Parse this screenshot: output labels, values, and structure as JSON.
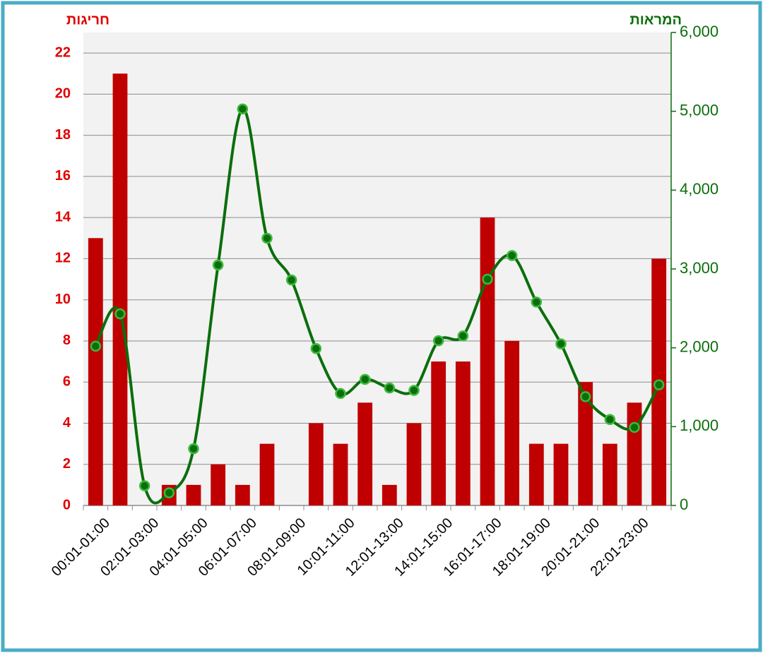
{
  "chart_data": {
    "type": "bar-line",
    "y_label": "חריגות",
    "y2_label": "המראות",
    "categories": [
      "00:01-01:00",
      null,
      "02:01-03:00",
      null,
      "04:01-05:00",
      null,
      "06:01-07:00",
      null,
      "08:01-09:00",
      null,
      "10:01-11:00",
      null,
      "12:01-13:00",
      null,
      "14:01-15:00",
      null,
      "16:01-17:00",
      null,
      "18:01-19:00",
      null,
      "20:01-21:00",
      null,
      "22:01-23:00",
      null
    ],
    "series": [
      {
        "type": "bar",
        "color": "#c00000",
        "values": [
          13,
          21,
          0,
          1,
          1,
          2,
          1,
          3,
          0,
          4,
          3,
          5,
          1,
          4,
          7,
          7,
          14,
          8,
          3,
          3,
          6,
          3,
          5,
          12
        ]
      },
      {
        "type": "line",
        "axis": "y2",
        "color": "#0b6e0b",
        "smooth": true,
        "values": [
          2020,
          2430,
          250,
          160,
          720,
          3050,
          5030,
          3390,
          2860,
          1990,
          1420,
          1600,
          1490,
          1460,
          2090,
          2150,
          2870,
          3170,
          2580,
          2050,
          1380,
          1090,
          990,
          1530
        ]
      }
    ],
    "ylim": [
      0,
      23
    ],
    "yticks": [
      0,
      2,
      4,
      6,
      8,
      10,
      12,
      14,
      16,
      18,
      20,
      22
    ],
    "y2lim": [
      0,
      6000
    ],
    "y2ticks": [
      0,
      {
        "value": 1000,
        "label": "1,000"
      },
      {
        "value": 2000,
        "label": "2,000"
      },
      {
        "value": 3000,
        "label": "3,000"
      },
      {
        "value": 4000,
        "label": "4,000"
      },
      {
        "value": 5000,
        "label": "5,000"
      },
      {
        "value": 6000,
        "label": "6,000"
      }
    ],
    "grid": true
  }
}
